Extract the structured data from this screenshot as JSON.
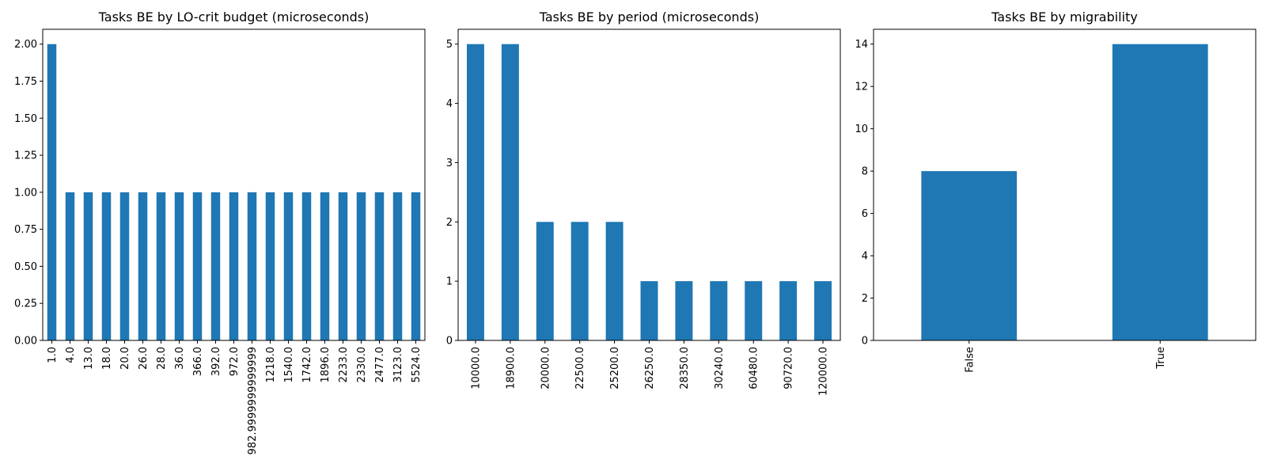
{
  "chart_data": [
    {
      "type": "bar",
      "title": "Tasks BE by LO-crit budget (microseconds)",
      "xlabel": "",
      "ylabel": "",
      "categories": [
        "1.0",
        "4.0",
        "13.0",
        "18.0",
        "20.0",
        "26.0",
        "28.0",
        "36.0",
        "366.0",
        "392.0",
        "972.0",
        "982.9999999999999",
        "1218.0",
        "1540.0",
        "1742.0",
        "1896.0",
        "2233.0",
        "2330.0",
        "2477.0",
        "3123.0",
        "5524.0"
      ],
      "values": [
        2,
        1,
        1,
        1,
        1,
        1,
        1,
        1,
        1,
        1,
        1,
        1,
        1,
        1,
        1,
        1,
        1,
        1,
        1,
        1,
        1
      ],
      "ylim": [
        0,
        2.1
      ],
      "yticks": [
        "0.00",
        "0.25",
        "0.50",
        "0.75",
        "1.00",
        "1.25",
        "1.50",
        "1.75",
        "2.00"
      ],
      "color": "#1f77b4",
      "grid": false,
      "legend": "none"
    },
    {
      "type": "bar",
      "title": "Tasks BE by period (microseconds)",
      "xlabel": "",
      "ylabel": "",
      "categories": [
        "10000.0",
        "18900.0",
        "20000.0",
        "22500.0",
        "25200.0",
        "26250.0",
        "28350.0",
        "30240.0",
        "60480.0",
        "90720.0",
        "120000.0"
      ],
      "values": [
        5,
        5,
        2,
        2,
        2,
        1,
        1,
        1,
        1,
        1,
        1
      ],
      "ylim": [
        0,
        5.25
      ],
      "yticks": [
        "0",
        "1",
        "2",
        "3",
        "4",
        "5"
      ],
      "color": "#1f77b4",
      "grid": false,
      "legend": "none"
    },
    {
      "type": "bar",
      "title": "Tasks BE by migrability",
      "xlabel": "",
      "ylabel": "",
      "categories": [
        "False",
        "True"
      ],
      "values": [
        8,
        14
      ],
      "ylim": [
        0,
        14.7
      ],
      "yticks": [
        "0",
        "2",
        "4",
        "6",
        "8",
        "10",
        "12",
        "14"
      ],
      "color": "#1f77b4",
      "grid": false,
      "legend": "none"
    }
  ]
}
